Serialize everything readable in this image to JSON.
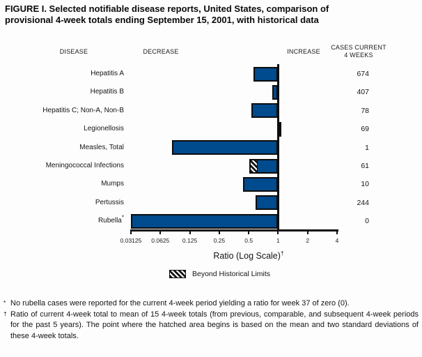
{
  "title": {
    "line1": "FIGURE I. Selected notifiable disease reports, United States, comparison of",
    "line2": "provisional 4-week totals ending September 15, 2001, with historical data"
  },
  "columns": {
    "disease": "DISEASE",
    "decrease": "DECREASE",
    "increase": "INCREASE",
    "cases_line1": "CASES CURRENT",
    "cases_line2": "4 WEEKS"
  },
  "chart_data": {
    "type": "bar",
    "orientation": "horizontal",
    "scale": "log2",
    "title": "Ratio (Log Scale)",
    "axis": {
      "label": "Ratio (Log Scale)",
      "label_superscript": "†",
      "ticks": [
        0.03125,
        0.0625,
        0.125,
        0.25,
        0.5,
        1,
        2,
        4
      ],
      "tick_labels": [
        "0.03125",
        "0.0625",
        "0.125",
        "0.25",
        "0.5",
        "1",
        "2",
        "4"
      ],
      "range": [
        0.03125,
        4
      ],
      "baseline": 1,
      "grid": false
    },
    "rows": [
      {
        "disease": "Hepatitis A",
        "cases": "674",
        "ratio": 0.56,
        "beyond_limits": false
      },
      {
        "disease": "Hepatitis B",
        "cases": "407",
        "ratio": 0.87,
        "beyond_limits": false
      },
      {
        "disease": "Hepatitis C; Non-A, Non-B",
        "cases": "78",
        "ratio": 0.53,
        "beyond_limits": false
      },
      {
        "disease": "Legionellosis",
        "cases": "69",
        "ratio": 1.08,
        "beyond_limits": false
      },
      {
        "disease": "Measles, Total",
        "cases": "1",
        "ratio": 0.082,
        "beyond_limits": false
      },
      {
        "disease": "Meningococcal Infections",
        "cases": "61",
        "ratio": 0.51,
        "beyond_limits": true,
        "hatch_to": 0.6
      },
      {
        "disease": "Mumps",
        "cases": "10",
        "ratio": 0.44,
        "beyond_limits": false
      },
      {
        "disease": "Pertussis",
        "cases": "244",
        "ratio": 0.59,
        "beyond_limits": false
      },
      {
        "disease": "Rubella",
        "label_superscript": "*",
        "cases": "0",
        "ratio": 0.03125,
        "beyond_limits": false
      }
    ],
    "legend": {
      "position": "bottom",
      "swatch": "hatched",
      "label": "Beyond Historical Limits"
    },
    "colors": {
      "bar": "#004a8e",
      "bar_border": "#0d0d0d",
      "increase_fill": "#0d0d0d"
    }
  },
  "footnotes": [
    {
      "marker": "*",
      "text": "No rubella cases were reported for the current 4-week period yielding a ratio for week 37 of zero (0)."
    },
    {
      "marker": "†",
      "text": "Ratio of current 4-week total to mean of 15 4-week totals (from previous, comparable, and subsequent 4-week periods for the past 5 years). The point where the hatched area begins is based on the mean and two standard deviations of these 4-week totals."
    }
  ]
}
